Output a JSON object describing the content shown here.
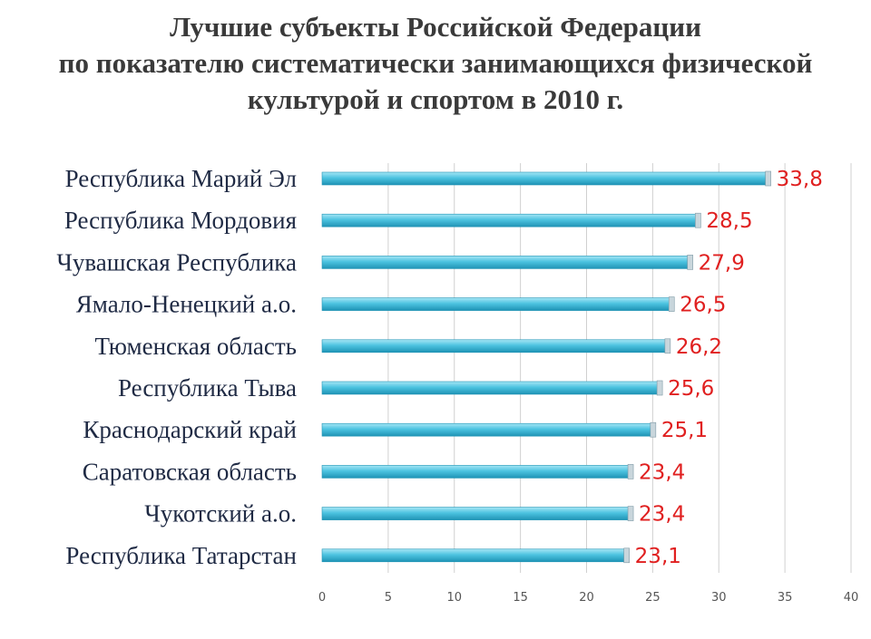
{
  "title_lines": [
    "Лучшие субъекты Российской Федерации",
    "по показателю систематически занимающихся физической",
    "культурой и спортом в 2010 г."
  ],
  "chart_data": {
    "type": "bar",
    "orientation": "horizontal",
    "title": "Лучшие субъекты Российской Федерации по показателю систематически занимающихся физической культурой и спортом в 2010 г.",
    "categories": [
      "Республика Марий Эл",
      "Республика Мордовия",
      "Чувашская Республика",
      "Ямало-Ненецкий а.о.",
      "Тюменская область",
      "Республика Тыва",
      "Краснодарский край",
      "Саратовская область",
      "Чукотский а.о.",
      "Республика Татарстан"
    ],
    "values": [
      33.8,
      28.5,
      27.9,
      26.5,
      26.2,
      25.6,
      25.1,
      23.4,
      23.4,
      23.1
    ],
    "value_labels": [
      "33,8",
      "28,5",
      "27,9",
      "26,5",
      "26,2",
      "25,6",
      "25,1",
      "23,4",
      "23,4",
      "23,1"
    ],
    "xticks": [
      "0",
      "5",
      "10",
      "15",
      "20",
      "25",
      "30",
      "35",
      "40"
    ],
    "xlim": [
      0,
      40
    ],
    "grid": "vertical",
    "legend": "none",
    "colors": {
      "bar": "#4cc3e0",
      "bar_light": "#a6e6f5",
      "bar_dark": "#1f93b5",
      "value_label": "#e02020",
      "grid": "#d0d0d0",
      "title": "#3a3a3a",
      "category_label": "#1f2a44"
    }
  }
}
